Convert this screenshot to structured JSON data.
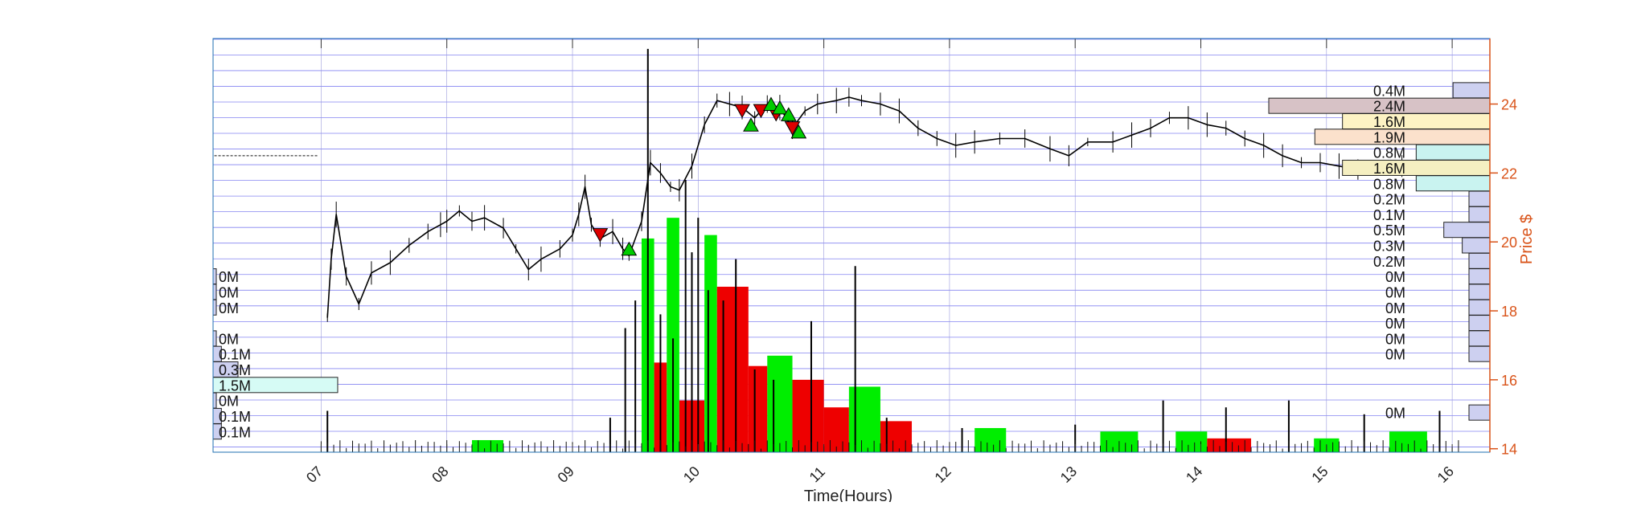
{
  "chart_data": {
    "type": "candlestick",
    "xlabel": "Time(Hours)",
    "ylabel": "Price $",
    "x_ticks": [
      "07",
      "08",
      "09",
      "10",
      "11",
      "12",
      "13",
      "14",
      "15",
      "16"
    ],
    "xlim_hours": [
      6.14,
      16.3
    ],
    "y_ticks": [
      14,
      16,
      18,
      20,
      22,
      24
    ],
    "ylim": [
      13.9,
      25.9
    ],
    "grid": "horizontal price bands every 0.46 and vertical lines at each hour",
    "colors": {
      "axis_right": "#d95319",
      "grid": "#6666ee",
      "price": "#000000",
      "volume_up": "#00ee00",
      "volume_down": "#ee0000",
      "buy_marker": "#00cc00",
      "sell_marker": "#dd0000",
      "premarket_profile": "#7fffd4",
      "regular_profile": "#6a6ad8"
    },
    "price_path": [
      [
        7.05,
        17.8
      ],
      [
        7.08,
        19.5
      ],
      [
        7.12,
        20.8
      ],
      [
        7.2,
        19.0
      ],
      [
        7.3,
        18.2
      ],
      [
        7.4,
        19.1
      ],
      [
        7.55,
        19.4
      ],
      [
        7.7,
        19.9
      ],
      [
        7.85,
        20.3
      ],
      [
        7.95,
        20.5
      ],
      [
        8.0,
        20.6
      ],
      [
        8.1,
        20.9
      ],
      [
        8.2,
        20.6
      ],
      [
        8.3,
        20.7
      ],
      [
        8.45,
        20.4
      ],
      [
        8.55,
        19.8
      ],
      [
        8.65,
        19.2
      ],
      [
        8.75,
        19.5
      ],
      [
        8.9,
        19.8
      ],
      [
        9.0,
        20.2
      ],
      [
        9.05,
        20.8
      ],
      [
        9.1,
        21.6
      ],
      [
        9.15,
        20.5
      ],
      [
        9.22,
        20.1
      ],
      [
        9.32,
        20.3
      ],
      [
        9.4,
        19.8
      ],
      [
        9.45,
        19.6
      ],
      [
        9.55,
        20.6
      ],
      [
        9.62,
        22.3
      ],
      [
        9.7,
        22.0
      ],
      [
        9.78,
        21.6
      ],
      [
        9.85,
        21.5
      ],
      [
        9.95,
        22.2
      ],
      [
        10.05,
        23.4
      ],
      [
        10.15,
        24.1
      ],
      [
        10.25,
        24.0
      ],
      [
        10.35,
        23.9
      ],
      [
        10.45,
        23.6
      ],
      [
        10.55,
        24.0
      ],
      [
        10.65,
        23.9
      ],
      [
        10.75,
        23.3
      ],
      [
        10.85,
        23.8
      ],
      [
        10.95,
        24.0
      ],
      [
        11.1,
        24.1
      ],
      [
        11.2,
        24.2
      ],
      [
        11.3,
        24.1
      ],
      [
        11.45,
        24.0
      ],
      [
        11.6,
        23.8
      ],
      [
        11.75,
        23.3
      ],
      [
        11.9,
        23.0
      ],
      [
        12.05,
        22.8
      ],
      [
        12.2,
        22.9
      ],
      [
        12.4,
        23.0
      ],
      [
        12.6,
        23.0
      ],
      [
        12.8,
        22.7
      ],
      [
        12.95,
        22.5
      ],
      [
        13.1,
        22.9
      ],
      [
        13.3,
        22.9
      ],
      [
        13.45,
        23.1
      ],
      [
        13.6,
        23.3
      ],
      [
        13.75,
        23.6
      ],
      [
        13.9,
        23.6
      ],
      [
        14.05,
        23.4
      ],
      [
        14.2,
        23.3
      ],
      [
        14.35,
        23.0
      ],
      [
        14.5,
        22.8
      ],
      [
        14.65,
        22.5
      ],
      [
        14.8,
        22.3
      ],
      [
        14.95,
        22.3
      ],
      [
        15.1,
        22.2
      ],
      [
        15.25,
        22.1
      ],
      [
        15.45,
        22.2
      ],
      [
        15.6,
        22.2
      ],
      [
        15.75,
        22.1
      ],
      [
        15.9,
        22.1
      ],
      [
        16.0,
        22.1
      ]
    ],
    "premarket_quote_line": {
      "x": [
        6.15,
        6.98
      ],
      "y": 22.5
    },
    "sell_markers": [
      [
        9.22,
        20.2
      ],
      [
        10.35,
        23.8
      ],
      [
        10.5,
        23.8
      ],
      [
        10.62,
        23.7
      ],
      [
        10.75,
        23.3
      ]
    ],
    "buy_markers": [
      [
        9.45,
        19.8
      ],
      [
        10.42,
        23.4
      ],
      [
        10.58,
        24.0
      ],
      [
        10.65,
        23.9
      ],
      [
        10.72,
        23.7
      ],
      [
        10.8,
        23.2
      ]
    ],
    "volume_bars": [
      {
        "x": [
          8.2,
          8.45
        ],
        "h": 0.35,
        "up": true
      },
      {
        "x": [
          9.55,
          9.65
        ],
        "h": 6.2,
        "up": true
      },
      {
        "x": [
          9.65,
          9.75
        ],
        "h": 2.6,
        "up": false
      },
      {
        "x": [
          9.75,
          9.85
        ],
        "h": 6.8,
        "up": true
      },
      {
        "x": [
          9.85,
          10.05
        ],
        "h": 1.5,
        "up": false
      },
      {
        "x": [
          10.05,
          10.15
        ],
        "h": 6.3,
        "up": true
      },
      {
        "x": [
          10.15,
          10.4
        ],
        "h": 4.8,
        "up": false
      },
      {
        "x": [
          10.4,
          10.55
        ],
        "h": 2.5,
        "up": false
      },
      {
        "x": [
          10.55,
          10.75
        ],
        "h": 2.8,
        "up": true
      },
      {
        "x": [
          10.75,
          11.0
        ],
        "h": 2.1,
        "up": false
      },
      {
        "x": [
          11.0,
          11.2
        ],
        "h": 1.3,
        "up": false
      },
      {
        "x": [
          11.2,
          11.45
        ],
        "h": 1.9,
        "up": true
      },
      {
        "x": [
          11.45,
          11.7
        ],
        "h": 0.9,
        "up": false
      },
      {
        "x": [
          12.2,
          12.45
        ],
        "h": 0.7,
        "up": true
      },
      {
        "x": [
          13.2,
          13.5
        ],
        "h": 0.6,
        "up": true
      },
      {
        "x": [
          13.8,
          14.05
        ],
        "h": 0.6,
        "up": true
      },
      {
        "x": [
          14.05,
          14.4
        ],
        "h": 0.4,
        "up": false
      },
      {
        "x": [
          14.9,
          15.1
        ],
        "h": 0.4,
        "up": true
      },
      {
        "x": [
          15.5,
          15.8
        ],
        "h": 0.6,
        "up": true
      }
    ],
    "volume_spikes": [
      [
        7.05,
        1.2
      ],
      [
        9.3,
        1.0
      ],
      [
        9.42,
        3.6
      ],
      [
        9.5,
        4.4
      ],
      [
        9.6,
        11.7
      ],
      [
        9.7,
        4.0
      ],
      [
        9.8,
        3.3
      ],
      [
        9.9,
        7.9
      ],
      [
        9.95,
        5.8
      ],
      [
        10.0,
        6.8
      ],
      [
        10.08,
        4.7
      ],
      [
        10.2,
        4.4
      ],
      [
        10.3,
        5.6
      ],
      [
        10.45,
        2.4
      ],
      [
        10.6,
        2.1
      ],
      [
        10.9,
        3.8
      ],
      [
        11.25,
        5.4
      ],
      [
        11.5,
        1.0
      ],
      [
        12.1,
        0.7
      ],
      [
        13.0,
        0.8
      ],
      [
        13.7,
        1.5
      ],
      [
        14.2,
        1.3
      ],
      [
        14.7,
        1.5
      ],
      [
        15.3,
        1.1
      ],
      [
        15.9,
        1.2
      ]
    ],
    "volume_profile_regular": [
      {
        "label": "0.4M",
        "y": 24.4,
        "value": 0.4
      },
      {
        "label": "2.4M",
        "y": 23.95,
        "value": 2.4,
        "color": "#d7c2c6"
      },
      {
        "label": "1.6M",
        "y": 23.5,
        "value": 1.6,
        "color": "#fdf3c4"
      },
      {
        "label": "1.9M",
        "y": 23.05,
        "value": 1.9,
        "color": "#fbe1cc"
      },
      {
        "label": "0.8M",
        "y": 22.6,
        "value": 0.8,
        "color": "#c9f3f0"
      },
      {
        "label": "1.6M",
        "y": 22.15,
        "value": 1.6,
        "color": "#f5efc1"
      },
      {
        "label": "0.8M",
        "y": 21.7,
        "value": 0.8,
        "color": "#c9f3f0"
      },
      {
        "label": "0.2M",
        "y": 21.25,
        "value": 0.2
      },
      {
        "label": "0.1M",
        "y": 20.8,
        "value": 0.1
      },
      {
        "label": "0.5M",
        "y": 20.35,
        "value": 0.5
      },
      {
        "label": "0.3M",
        "y": 19.9,
        "value": 0.3
      },
      {
        "label": "0.2M",
        "y": 19.45,
        "value": 0.2
      },
      {
        "label": "0M",
        "y": 19.0,
        "value": 0.0
      },
      {
        "label": "0M",
        "y": 18.55,
        "value": 0.0
      },
      {
        "label": "0M",
        "y": 18.1,
        "value": 0.0
      },
      {
        "label": "0M",
        "y": 17.65,
        "value": 0.0
      },
      {
        "label": "0M",
        "y": 17.2,
        "value": 0.0
      },
      {
        "label": "0M",
        "y": 16.75,
        "value": 0.0
      },
      {
        "label": "0M",
        "y": 15.05,
        "value": 0.0
      }
    ],
    "volume_profile_premarket": [
      {
        "label": "0M",
        "y": 19.0,
        "value": 0.0
      },
      {
        "label": "0M",
        "y": 18.55,
        "value": 0.0
      },
      {
        "label": "0M",
        "y": 18.1,
        "value": 0.0
      },
      {
        "label": "0M",
        "y": 17.2,
        "value": 0.0
      },
      {
        "label": "0.1M",
        "y": 16.75,
        "value": 0.1
      },
      {
        "label": "0.3M",
        "y": 16.3,
        "value": 0.3
      },
      {
        "label": "1.5M",
        "y": 15.85,
        "value": 1.5,
        "color": "#d6fbf5"
      },
      {
        "label": "0M",
        "y": 15.4,
        "value": 0.0
      },
      {
        "label": "0.1M",
        "y": 14.95,
        "value": 0.1
      },
      {
        "label": "0.1M",
        "y": 14.5,
        "value": 0.1
      }
    ]
  }
}
